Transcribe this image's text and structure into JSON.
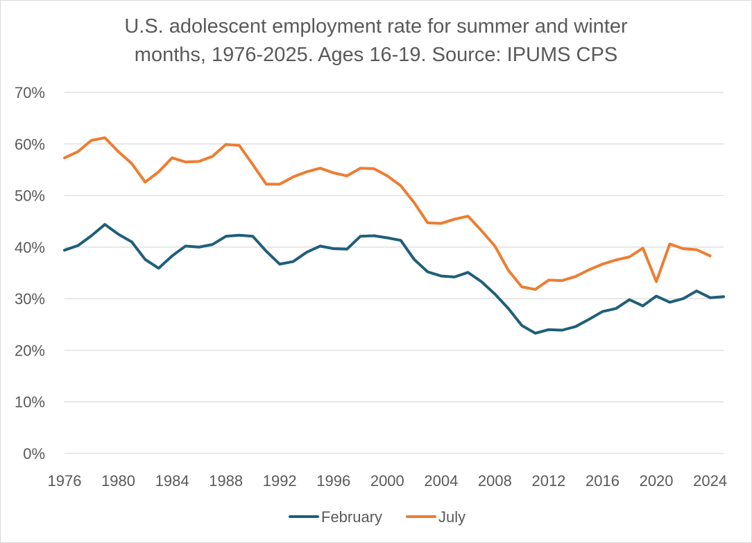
{
  "chart_data": {
    "type": "line",
    "title_lines": [
      "U.S. adolescent employment rate for summer and winter",
      "months, 1976-2025. Ages 16-19. Source: IPUMS CPS"
    ],
    "xlabel": "",
    "ylabel": "",
    "ylim": [
      0,
      70
    ],
    "yticks": [
      "0%",
      "10%",
      "20%",
      "30%",
      "40%",
      "50%",
      "60%",
      "70%"
    ],
    "ytick_values": [
      0,
      10,
      20,
      30,
      40,
      50,
      60,
      70
    ],
    "xlim": [
      1976,
      2025
    ],
    "xticks": [
      "1976",
      "1980",
      "1984",
      "1988",
      "1992",
      "1996",
      "2000",
      "2004",
      "2008",
      "2012",
      "2016",
      "2020",
      "2024"
    ],
    "xtick_values": [
      1976,
      1980,
      1984,
      1988,
      1992,
      1996,
      2000,
      2004,
      2008,
      2012,
      2016,
      2020,
      2024
    ],
    "grid": true,
    "legend_position": "bottom",
    "series": [
      {
        "name": "February",
        "color": "#1f5f7a",
        "x": [
          1976,
          1977,
          1978,
          1979,
          1980,
          1981,
          1982,
          1983,
          1984,
          1985,
          1986,
          1987,
          1988,
          1989,
          1990,
          1991,
          1992,
          1993,
          1994,
          1995,
          1996,
          1997,
          1998,
          1999,
          2000,
          2001,
          2002,
          2003,
          2004,
          2005,
          2006,
          2007,
          2008,
          2009,
          2010,
          2011,
          2012,
          2013,
          2014,
          2015,
          2016,
          2017,
          2018,
          2019,
          2020,
          2021,
          2022,
          2023,
          2024,
          2025
        ],
        "values": [
          39.4,
          40.3,
          42.2,
          44.4,
          42.5,
          41.0,
          37.6,
          35.9,
          38.3,
          40.2,
          40.0,
          40.5,
          42.1,
          42.3,
          42.1,
          39.2,
          36.7,
          37.2,
          39.0,
          40.2,
          39.7,
          39.6,
          42.1,
          42.2,
          41.8,
          41.3,
          37.6,
          35.2,
          34.4,
          34.2,
          35.1,
          33.3,
          30.9,
          28.1,
          24.8,
          23.3,
          24.0,
          23.9,
          24.6,
          26.0,
          27.5,
          28.1,
          29.8,
          28.6,
          30.5,
          29.3,
          30.0,
          31.5,
          30.2,
          30.4
        ]
      },
      {
        "name": "July",
        "color": "#ed7d31",
        "x": [
          1976,
          1977,
          1978,
          1979,
          1980,
          1981,
          1982,
          1983,
          1984,
          1985,
          1986,
          1987,
          1988,
          1989,
          1990,
          1991,
          1992,
          1993,
          1994,
          1995,
          1996,
          1997,
          1998,
          1999,
          2000,
          2001,
          2002,
          2003,
          2004,
          2005,
          2006,
          2007,
          2008,
          2009,
          2010,
          2011,
          2012,
          2013,
          2014,
          2015,
          2016,
          2017,
          2018,
          2019,
          2020,
          2021,
          2022,
          2023,
          2024
        ],
        "values": [
          57.3,
          58.5,
          60.7,
          61.2,
          58.5,
          56.2,
          52.6,
          54.6,
          57.3,
          56.5,
          56.6,
          57.6,
          59.9,
          59.7,
          56.0,
          52.2,
          52.2,
          53.6,
          54.6,
          55.3,
          54.4,
          53.8,
          55.3,
          55.2,
          53.8,
          51.9,
          48.6,
          44.7,
          44.6,
          45.4,
          46.0,
          43.2,
          40.2,
          35.5,
          32.3,
          31.8,
          33.6,
          33.5,
          34.3,
          35.6,
          36.7,
          37.5,
          38.1,
          39.8,
          33.3,
          40.6,
          39.7,
          39.5,
          38.3
        ]
      }
    ]
  }
}
